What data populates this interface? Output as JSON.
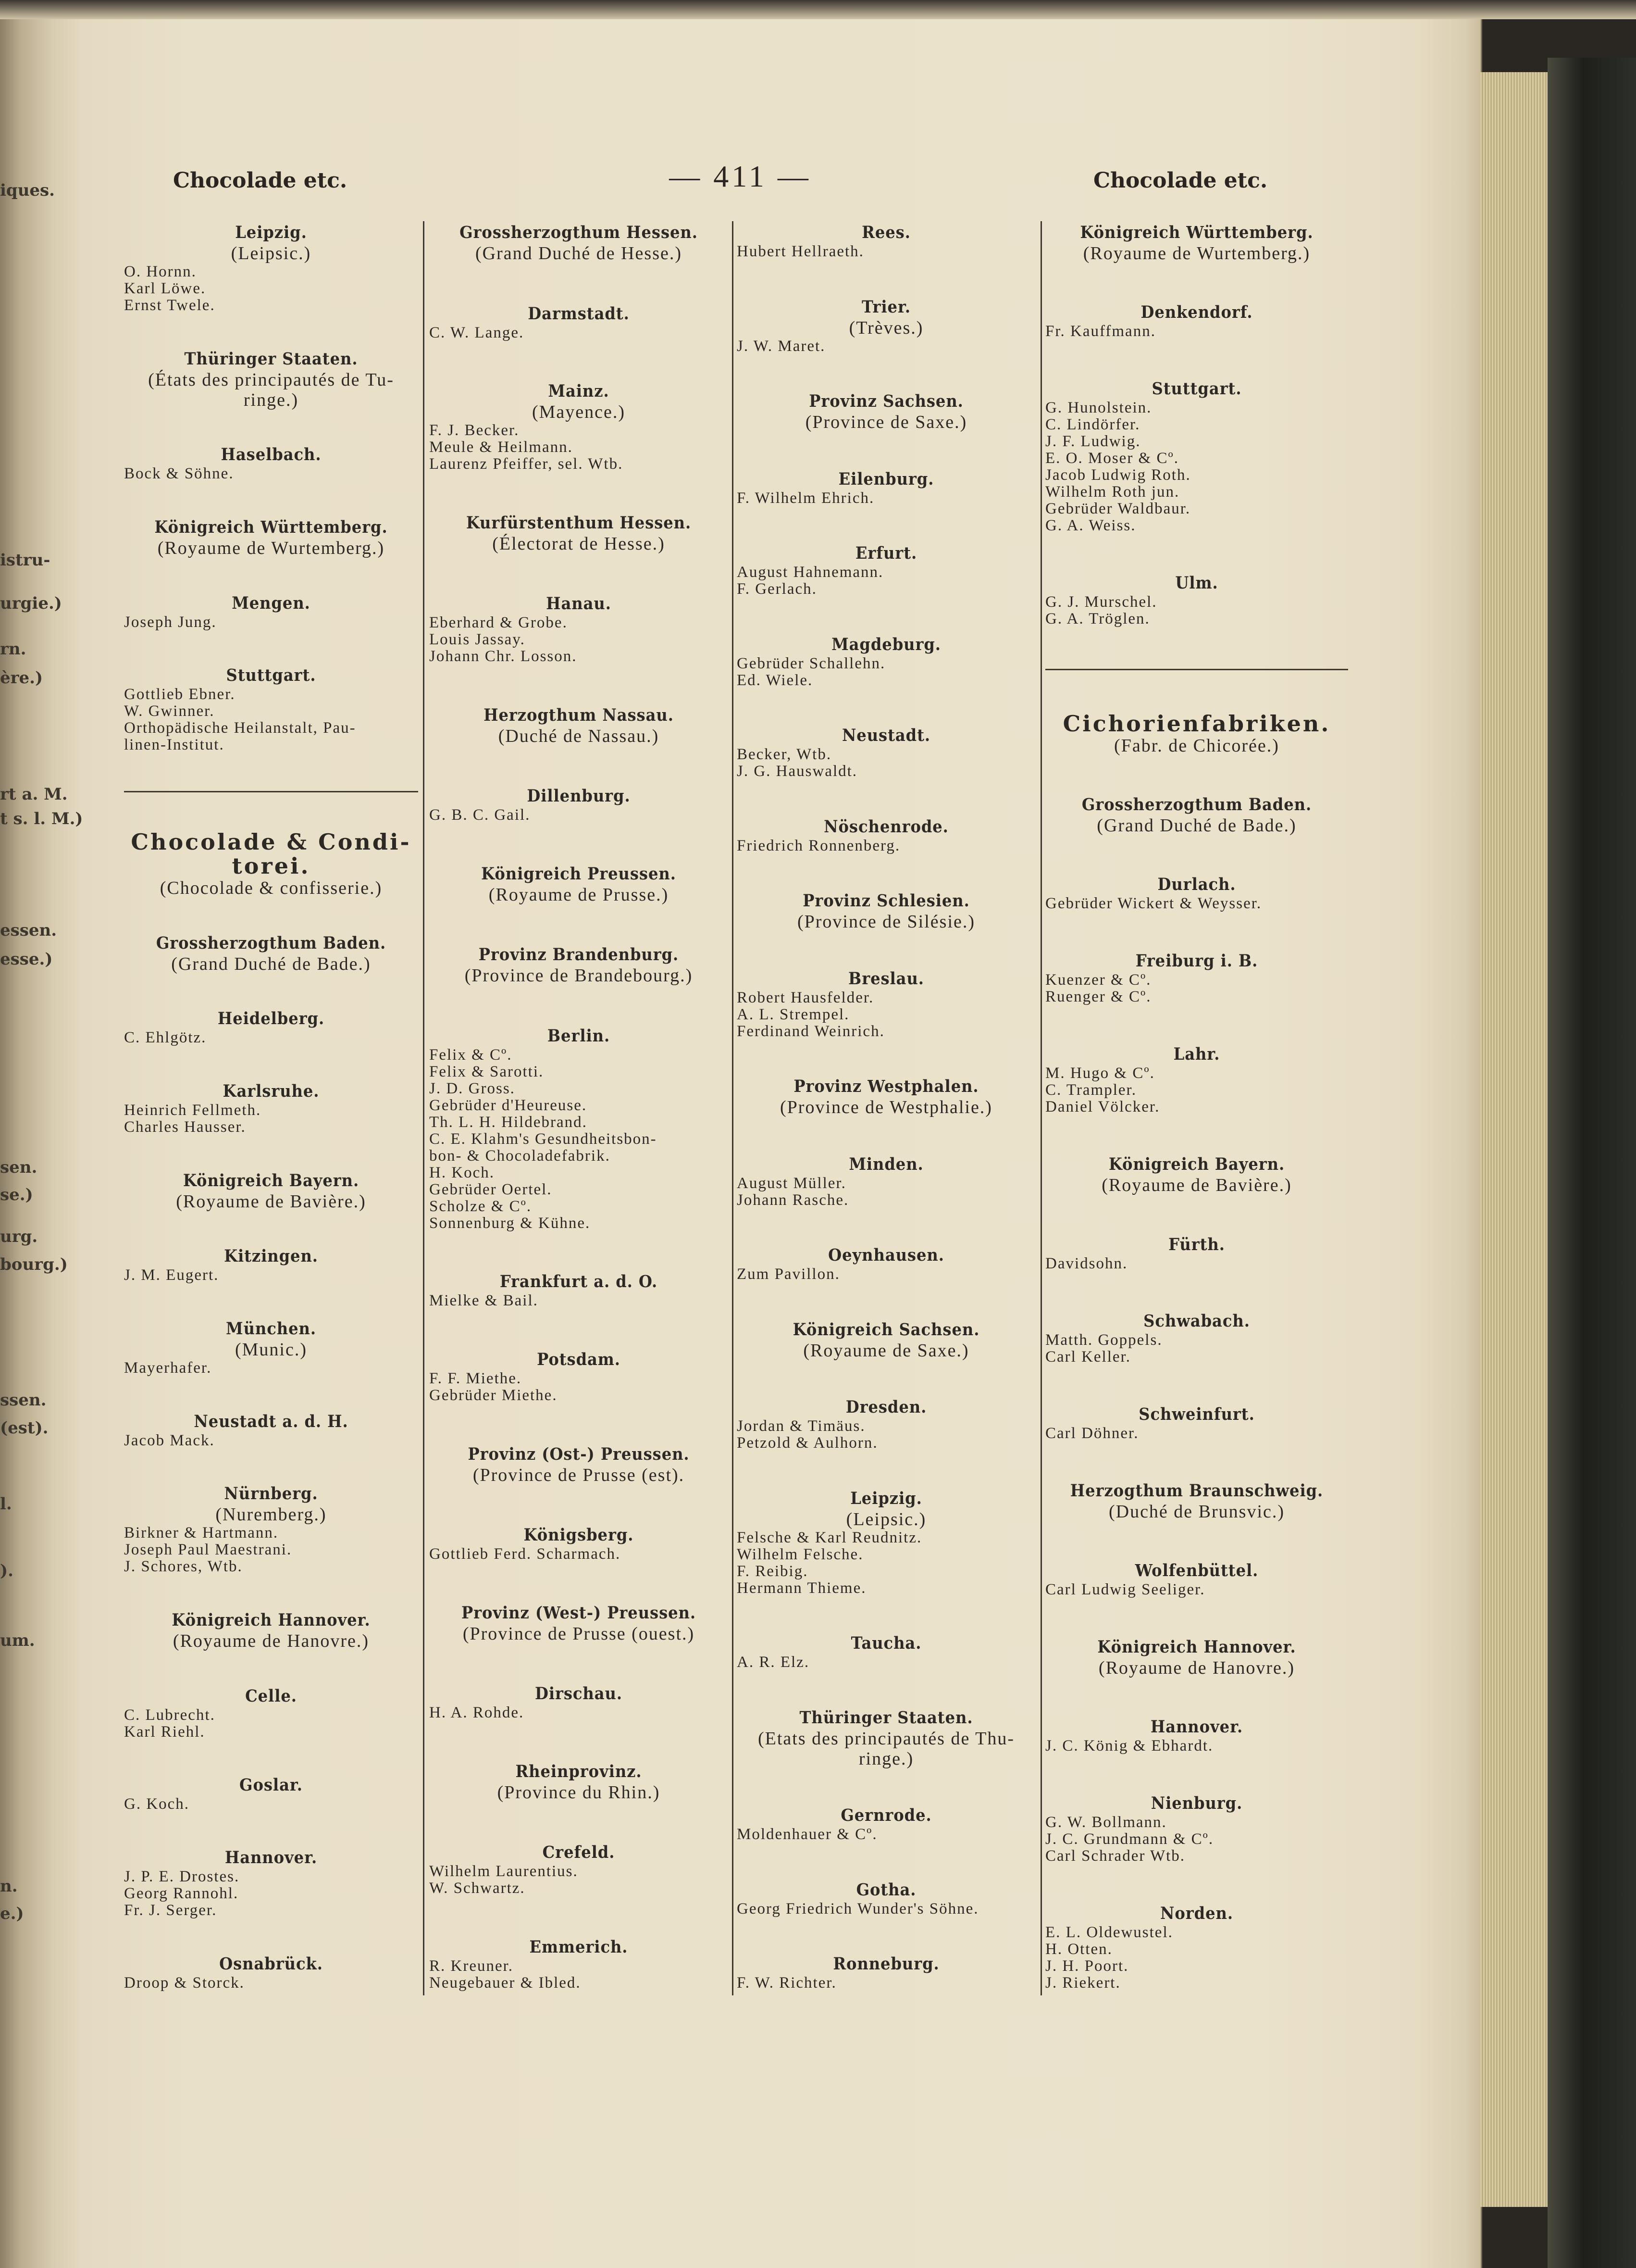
{
  "header": {
    "left_title": "Chocolade etc.",
    "page_number": "— 411 —",
    "right_title": "Chocolade etc."
  },
  "previous_page_fragments": [
    "iques.",
    "istru-",
    "urgie.)",
    "rn.",
    "ère.)",
    "rt a. M.",
    "t s. l. M.)",
    "essen.",
    "esse.)",
    "sen.",
    "se.)",
    "urg.",
    "bourg.)",
    "ssen.",
    "(est).",
    "l.",
    ").",
    "um.",
    "n.",
    "e.)"
  ],
  "columns": [
    [
      {
        "heading": "Leipzig.",
        "sub": "(Leipsic.)",
        "entries": [
          "O. Hornn.",
          "Karl Löwe.",
          "Ernst Twele."
        ]
      },
      {
        "heading": "Thüringer Staaten.",
        "sub": "(États des principautés de Tu-\nringe.)",
        "entries": []
      },
      {
        "heading": "Haselbach.",
        "entries": [
          "Bock & Söhne."
        ]
      },
      {
        "heading": "Königreich Württemberg.",
        "sub": "(Royaume de Wurtemberg.)",
        "entries": []
      },
      {
        "heading": "Mengen.",
        "entries": [
          "Joseph Jung."
        ]
      },
      {
        "heading": "Stuttgart.",
        "entries": [
          "Gottlieb Ebner.",
          "W. Gwinner.",
          "Orthopädische Heilanstalt, Pau-\n    linen-Institut."
        ]
      },
      {
        "rule": true
      },
      {
        "section": "Chocolade & Condi-\ntorei.",
        "sub": "(Chocolade & confisserie.)",
        "entries": []
      },
      {
        "heading": "Grossherzogthum Baden.",
        "sub": "(Grand Duché de Bade.)",
        "entries": []
      },
      {
        "heading": "Heidelberg.",
        "entries": [
          "C. Ehlgötz."
        ]
      },
      {
        "heading": "Karlsruhe.",
        "entries": [
          "Heinrich Fellmeth.",
          "Charles Hausser."
        ]
      },
      {
        "heading": "Königreich Bayern.",
        "sub": "(Royaume de Bavière.)",
        "entries": []
      },
      {
        "heading": "Kitzingen.",
        "entries": [
          "J. M. Eugert."
        ]
      },
      {
        "heading": "München.",
        "sub": "(Munic.)",
        "entries": [
          "Mayerhafer."
        ]
      },
      {
        "heading": "Neustadt a. d. H.",
        "entries": [
          "Jacob Mack."
        ]
      },
      {
        "heading": "Nürnberg.",
        "sub": "(Nuremberg.)",
        "entries": [
          "Birkner & Hartmann.",
          "Joseph Paul Maestrani.",
          "J. Schores, Wtb."
        ]
      },
      {
        "heading": "Königreich Hannover.",
        "sub": "(Royaume de Hanovre.)",
        "entries": []
      },
      {
        "heading": "Celle.",
        "entries": [
          "C. Lubrecht.",
          "Karl Riehl."
        ]
      },
      {
        "heading": "Goslar.",
        "entries": [
          "G. Koch."
        ]
      },
      {
        "heading": "Hannover.",
        "entries": [
          "J. P. E. Drostes.",
          "Georg Rannohl.",
          "Fr. J. Serger."
        ]
      },
      {
        "heading": "Osnabrück.",
        "entries": [
          "Droop & Storck."
        ]
      }
    ],
    [
      {
        "heading": "Grossherzogthum Hessen.",
        "sub": "(Grand Duché de Hesse.)",
        "entries": []
      },
      {
        "heading": "Darmstadt.",
        "entries": [
          "C. W. Lange."
        ]
      },
      {
        "heading": "Mainz.",
        "sub": "(Mayence.)",
        "entries": [
          "F. J. Becker.",
          "Meule & Heilmann.",
          "Laurenz Pfeiffer, sel. Wtb."
        ]
      },
      {
        "heading": "Kurfürstenthum Hessen.",
        "sub": "(Électorat de Hesse.)",
        "entries": []
      },
      {
        "heading": "Hanau.",
        "entries": [
          "Eberhard & Grobe.",
          "Louis Jassay.",
          "Johann Chr. Losson."
        ]
      },
      {
        "heading": "Herzogthum Nassau.",
        "sub": "(Duché de Nassau.)",
        "entries": []
      },
      {
        "heading": "Dillenburg.",
        "entries": [
          "G. B. C. Gail."
        ]
      },
      {
        "heading": "Königreich Preussen.",
        "sub": "(Royaume de Prusse.)",
        "entries": []
      },
      {
        "heading": "Provinz Brandenburg.",
        "sub": "(Province de Brandebourg.)",
        "entries": []
      },
      {
        "heading": "Berlin.",
        "entries": [
          "Felix & Cº.",
          "Felix & Sarotti.",
          "J. D. Gross.",
          "Gebrüder d'Heureuse.",
          "Th. L. H. Hildebrand.",
          "C. E. Klahm's Gesundheitsbon-\n    bon- & Chocoladefabrik.",
          "H. Koch.",
          "Gebrüder Oertel.",
          "Scholze & Cº.",
          "Sonnenburg & Kühne."
        ]
      },
      {
        "heading": "Frankfurt a. d. O.",
        "entries": [
          "Mielke & Bail."
        ]
      },
      {
        "heading": "Potsdam.",
        "entries": [
          "F. F. Miethe.",
          "Gebrüder Miethe."
        ]
      },
      {
        "heading": "Provinz (Ost-) Preussen.",
        "sub": "(Province de Prusse (est).",
        "entries": []
      },
      {
        "heading": "Königsberg.",
        "entries": [
          "Gottlieb Ferd. Scharmach."
        ]
      },
      {
        "heading": "Provinz (West-) Preussen.",
        "sub": "(Province de Prusse (ouest.)",
        "entries": []
      },
      {
        "heading": "Dirschau.",
        "entries": [
          "H. A. Rohde."
        ]
      },
      {
        "heading": "Rheinprovinz.",
        "sub": "(Province du Rhin.)",
        "entries": []
      },
      {
        "heading": "Crefeld.",
        "entries": [
          "Wilhelm Laurentius.",
          "W. Schwartz."
        ]
      },
      {
        "heading": "Emmerich.",
        "entries": [
          "R. Kreuner.",
          "Neugebauer & Ibled."
        ]
      }
    ],
    [
      {
        "heading": "Rees.",
        "entries": [
          "Hubert Hellraeth."
        ]
      },
      {
        "heading": "Trier.",
        "sub": "(Trèves.)",
        "entries": [
          "J. W. Maret."
        ]
      },
      {
        "heading": "Provinz Sachsen.",
        "sub": "(Province de Saxe.)",
        "entries": []
      },
      {
        "heading": "Eilenburg.",
        "entries": [
          "F. Wilhelm Ehrich."
        ]
      },
      {
        "heading": "Erfurt.",
        "entries": [
          "August Hahnemann.",
          "F. Gerlach."
        ]
      },
      {
        "heading": "Magdeburg.",
        "entries": [
          "Gebrüder Schallehn.",
          "Ed. Wiele."
        ]
      },
      {
        "heading": "Neustadt.",
        "entries": [
          "Becker, Wtb.",
          "J. G. Hauswaldt."
        ]
      },
      {
        "heading": "Nöschenrode.",
        "entries": [
          "Friedrich Ronnenberg."
        ]
      },
      {
        "heading": "Provinz Schlesien.",
        "sub": "(Province de Silésie.)",
        "entries": []
      },
      {
        "heading": "Breslau.",
        "entries": [
          "Robert Hausfelder.",
          "A. L. Strempel.",
          "Ferdinand Weinrich."
        ]
      },
      {
        "heading": "Provinz Westphalen.",
        "sub": "(Province de Westphalie.)",
        "entries": []
      },
      {
        "heading": "Minden.",
        "entries": [
          "August Müller.",
          "Johann Rasche."
        ]
      },
      {
        "heading": "Oeynhausen.",
        "entries": [
          "Zum Pavillon."
        ]
      },
      {
        "heading": "Königreich Sachsen.",
        "sub": "(Royaume de Saxe.)",
        "entries": []
      },
      {
        "heading": "Dresden.",
        "entries": [
          "Jordan & Timäus.",
          "Petzold & Aulhorn."
        ]
      },
      {
        "heading": "Leipzig.",
        "sub": "(Leipsic.)",
        "entries": [
          "Felsche & Karl Reudnitz.",
          "Wilhelm Felsche.",
          "F. Reibig.",
          "Hermann Thieme."
        ]
      },
      {
        "heading": "Taucha.",
        "entries": [
          "A. R. Elz."
        ]
      },
      {
        "heading": "Thüringer Staaten.",
        "sub": "(Etats des principautés de Thu-\nringe.)",
        "entries": []
      },
      {
        "heading": "Gernrode.",
        "entries": [
          "Moldenhauer & Cº."
        ]
      },
      {
        "heading": "Gotha.",
        "entries": [
          "Georg Friedrich Wunder's Söhne."
        ]
      },
      {
        "heading": "Ronneburg.",
        "entries": [
          "F. W. Richter."
        ]
      }
    ],
    [
      {
        "heading": "Königreich Württemberg.",
        "sub": "(Royaume de Wurtemberg.)",
        "entries": []
      },
      {
        "heading": "Denkendorf.",
        "entries": [
          "Fr. Kauffmann."
        ]
      },
      {
        "heading": "Stuttgart.",
        "entries": [
          "G. Hunolstein.",
          "C. Lindörfer.",
          "J. F. Ludwig.",
          "E. O. Moser & Cº.",
          "Jacob Ludwig Roth.",
          "Wilhelm Roth jun.",
          "Gebrüder Waldbaur.",
          "G. A. Weiss."
        ]
      },
      {
        "heading": "Ulm.",
        "entries": [
          "G. J. Murschel.",
          "G. A. Tröglen."
        ]
      },
      {
        "rule": true
      },
      {
        "section": "Cichorienfabriken.",
        "sub": "(Fabr. de Chicorée.)",
        "entries": []
      },
      {
        "heading": "Grossherzogthum Baden.",
        "sub": "(Grand Duché de Bade.)",
        "entries": []
      },
      {
        "heading": "Durlach.",
        "entries": [
          "Gebrüder Wickert & Weysser."
        ]
      },
      {
        "heading": "Freiburg i. B.",
        "entries": [
          "Kuenzer & Cº.",
          "Ruenger & Cº."
        ]
      },
      {
        "heading": "Lahr.",
        "entries": [
          "M. Hugo & Cº.",
          "C. Trampler.",
          "Daniel Völcker."
        ]
      },
      {
        "heading": "Königreich Bayern.",
        "sub": "(Royaume de Bavière.)",
        "entries": []
      },
      {
        "heading": "Fürth.",
        "entries": [
          "Davidsohn."
        ]
      },
      {
        "heading": "Schwabach.",
        "entries": [
          "Matth. Goppels.",
          "Carl Keller."
        ]
      },
      {
        "heading": "Schweinfurt.",
        "entries": [
          "Carl Döhner."
        ]
      },
      {
        "heading": "Herzogthum Braunschweig.",
        "sub": "(Duché de Brunsvic.)",
        "entries": []
      },
      {
        "heading": "Wolfenbüttel.",
        "entries": [
          "Carl Ludwig Seeliger."
        ]
      },
      {
        "heading": "Königreich Hannover.",
        "sub": "(Royaume de Hanovre.)",
        "entries": []
      },
      {
        "heading": "Hannover.",
        "entries": [
          "J. C. König & Ebhardt."
        ]
      },
      {
        "heading": "Nienburg.",
        "entries": [
          "G. W. Bollmann.",
          "J. C. Grundmann & Cº.",
          "Carl Schrader Wtb."
        ]
      },
      {
        "heading": "Norden.",
        "entries": [
          "E. L. Oldewustel.",
          "H. Otten.",
          "J. H. Poort.",
          "J. Riekert."
        ]
      }
    ]
  ]
}
